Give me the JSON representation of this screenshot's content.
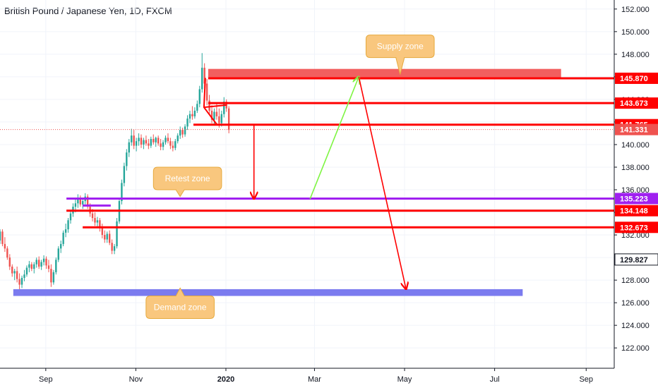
{
  "header": {
    "title": "British Pound / Japanese Yen, 1D, FXCM"
  },
  "chart_data": {
    "type": "candlestick",
    "symbol": "British Pound / Japanese Yen",
    "interval": "1D",
    "source": "FXCM",
    "ylim": [
      120.2,
      152.8
    ],
    "y_ticks": [
      "152.000",
      "150.000",
      "148.000",
      "146.000",
      "144.000",
      "142.000",
      "140.000",
      "138.000",
      "136.000",
      "134.000",
      "132.000",
      "130.000",
      "128.000",
      "126.000",
      "124.000",
      "122.000"
    ],
    "x_ticks": [
      {
        "label": "Sep",
        "date": "2019-09-01"
      },
      {
        "label": "Nov",
        "date": "2019-11-01"
      },
      {
        "label": "2020",
        "date": "2020-01-01"
      },
      {
        "label": "Mar",
        "date": "2020-03-01"
      },
      {
        "label": "May",
        "date": "2020-05-01"
      },
      {
        "label": "Jul",
        "date": "2020-07-01"
      },
      {
        "label": "Sep",
        "date": "2020-09-01"
      }
    ],
    "x_range": [
      "2019-08-01",
      "2020-09-20"
    ],
    "grid": true,
    "colors": {
      "up": "#26a69a",
      "down": "#ef5350",
      "level": "#ff0000",
      "purple": "#a020f0",
      "supply": "#f25f5f",
      "demand": "#7b7bef",
      "bubble": "#f9c77e",
      "bubble_border": "#e6a93c",
      "green_arrow": "#7ef542"
    },
    "current_price": {
      "label": "141.331",
      "value": 141.331,
      "color": "#ef5350"
    },
    "price_labels": [
      {
        "label": "145.870",
        "value": 145.87,
        "color": "#ff0000"
      },
      {
        "label": "143.673",
        "value": 143.673,
        "color": "#ff0000"
      },
      {
        "label": "141.765",
        "value": 141.765,
        "color": "#ff0000"
      },
      {
        "label": "135.223",
        "value": 135.223,
        "color": "#a020f0"
      },
      {
        "label": "134.148",
        "value": 134.148,
        "color": "#ff0000"
      },
      {
        "label": "132.673",
        "value": 132.673,
        "color": "#ff0000"
      },
      {
        "label": "129.827",
        "value": 129.827,
        "color": "#131722"
      }
    ],
    "horizontal_levels": [
      {
        "value": 145.87,
        "from": "2019-12-20",
        "color": "#ff0000"
      },
      {
        "value": 143.673,
        "from": "2019-12-20",
        "color": "#ff0000"
      },
      {
        "value": 141.765,
        "from": "2019-12-10",
        "color": "#ff0000"
      },
      {
        "value": 135.223,
        "from": "2019-09-15",
        "color": "#a020f0"
      },
      {
        "value": 134.148,
        "from": "2019-09-15",
        "color": "#ff0000"
      },
      {
        "value": 132.673,
        "from": "2019-09-26",
        "color": "#ff0000"
      }
    ],
    "short_line": {
      "value": 134.6,
      "from": "2019-09-26",
      "to": "2019-10-15",
      "color": "#a020f0"
    },
    "zones": [
      {
        "name": "Supply zone",
        "from": "2019-12-20",
        "to": "2020-08-15",
        "high": 146.7,
        "low": 145.95,
        "color": "#f25f5f"
      },
      {
        "name": "Demand zone",
        "from": "2019-08-10",
        "to": "2020-07-20",
        "high": 127.2,
        "low": 126.6,
        "color": "#7b7bef"
      }
    ],
    "annotations": [
      {
        "text": "Supply zone",
        "date": "2020-04-28",
        "value": 148.7,
        "tip_date": "2020-04-28",
        "tip_value": 146.2
      },
      {
        "text": "Retest zone",
        "date": "2019-12-06",
        "value": 137.0,
        "tip_date": "2019-12-01",
        "tip_value": 135.4
      },
      {
        "text": "Demand zone",
        "date": "2019-12-01",
        "value": 125.6,
        "tip_date": "2019-12-01",
        "tip_value": 127.3
      }
    ],
    "arrows": [
      {
        "from_date": "2020-01-20",
        "from_value": 141.7,
        "to_date": "2020-01-20",
        "to_value": 135.2,
        "color": "#ff0000"
      },
      {
        "from_date": "2020-02-27",
        "from_value": 135.2,
        "to_date": "2020-03-31",
        "to_value": 146.0,
        "color": "#7ef542"
      },
      {
        "from_date": "2020-03-31",
        "from_value": 146.0,
        "to_date": "2020-05-02",
        "to_value": 127.2,
        "color": "#ff0000"
      }
    ],
    "candles": [
      [
        131.5,
        132.5,
        131.2,
        132.3
      ],
      [
        132.3,
        132.5,
        131.0,
        131.2
      ],
      [
        131.2,
        131.8,
        130.5,
        130.8
      ],
      [
        130.8,
        131.0,
        129.8,
        130.0
      ],
      [
        130.0,
        130.3,
        128.9,
        129.2
      ],
      [
        129.2,
        129.4,
        128.3,
        128.6
      ],
      [
        128.6,
        129.0,
        128.0,
        128.8
      ],
      [
        128.8,
        129.2,
        127.8,
        128.1
      ],
      [
        128.1,
        128.6,
        127.2,
        127.6
      ],
      [
        127.6,
        128.4,
        127.3,
        128.2
      ],
      [
        128.2,
        128.9,
        127.9,
        128.5
      ],
      [
        128.5,
        129.3,
        128.3,
        129.1
      ],
      [
        129.1,
        129.7,
        128.7,
        129.4
      ],
      [
        129.4,
        129.6,
        128.8,
        129.0
      ],
      [
        129.0,
        129.6,
        128.6,
        129.4
      ],
      [
        129.4,
        130.0,
        129.1,
        129.8
      ],
      [
        129.8,
        130.1,
        129.0,
        129.2
      ],
      [
        129.2,
        129.8,
        128.9,
        129.6
      ],
      [
        129.6,
        130.2,
        129.3,
        129.9
      ],
      [
        129.9,
        130.1,
        129.0,
        129.3
      ],
      [
        129.3,
        129.8,
        128.7,
        129.0
      ],
      [
        129.0,
        129.4,
        127.4,
        127.8
      ],
      [
        127.8,
        128.9,
        127.6,
        128.7
      ],
      [
        128.7,
        130.0,
        128.5,
        129.8
      ],
      [
        129.8,
        131.0,
        129.6,
        130.8
      ],
      [
        130.8,
        131.5,
        130.4,
        131.2
      ],
      [
        131.2,
        132.4,
        131.0,
        132.2
      ],
      [
        132.2,
        133.0,
        131.8,
        132.5
      ],
      [
        132.5,
        133.5,
        132.2,
        133.3
      ],
      [
        133.3,
        134.2,
        133.0,
        133.9
      ],
      [
        133.9,
        134.8,
        133.6,
        134.5
      ],
      [
        134.5,
        135.2,
        134.0,
        134.8
      ],
      [
        134.8,
        135.6,
        134.4,
        135.3
      ],
      [
        135.3,
        135.5,
        134.5,
        134.7
      ],
      [
        134.7,
        135.3,
        134.3,
        135.0
      ],
      [
        135.0,
        135.7,
        134.7,
        135.4
      ],
      [
        135.4,
        135.6,
        134.3,
        134.5
      ],
      [
        134.5,
        134.8,
        133.6,
        133.9
      ],
      [
        133.9,
        134.3,
        133.2,
        133.5
      ],
      [
        133.5,
        134.0,
        132.8,
        133.1
      ],
      [
        133.1,
        133.6,
        132.6,
        133.3
      ],
      [
        133.3,
        133.5,
        132.3,
        132.6
      ],
      [
        132.6,
        133.0,
        131.7,
        132.0
      ],
      [
        132.0,
        132.4,
        131.3,
        131.6
      ],
      [
        131.6,
        132.3,
        131.3,
        132.1
      ],
      [
        132.1,
        132.4,
        131.1,
        131.3
      ],
      [
        131.3,
        131.6,
        130.3,
        130.6
      ],
      [
        130.6,
        131.2,
        130.3,
        131.0
      ],
      [
        131.0,
        133.5,
        130.8,
        133.2
      ],
      [
        133.2,
        135.2,
        133.0,
        135.0
      ],
      [
        135.0,
        136.9,
        134.7,
        136.6
      ],
      [
        136.6,
        138.4,
        136.3,
        138.1
      ],
      [
        138.1,
        139.6,
        137.7,
        139.3
      ],
      [
        139.3,
        140.5,
        138.9,
        140.2
      ],
      [
        140.2,
        141.4,
        139.9,
        140.8
      ],
      [
        140.8,
        141.3,
        139.6,
        139.9
      ],
      [
        139.9,
        140.6,
        139.4,
        140.3
      ],
      [
        140.3,
        141.0,
        139.9,
        140.6
      ],
      [
        140.6,
        140.9,
        139.7,
        140.0
      ],
      [
        140.0,
        140.6,
        139.6,
        140.4
      ],
      [
        140.4,
        140.8,
        139.9,
        140.1
      ],
      [
        140.1,
        140.5,
        139.6,
        139.9
      ],
      [
        139.9,
        140.7,
        139.7,
        140.5
      ],
      [
        140.5,
        140.9,
        140.0,
        140.2
      ],
      [
        140.2,
        140.7,
        139.8,
        140.6
      ],
      [
        140.6,
        140.8,
        139.9,
        140.1
      ],
      [
        140.1,
        140.5,
        139.5,
        139.8
      ],
      [
        139.8,
        140.4,
        139.5,
        140.2
      ],
      [
        140.2,
        140.8,
        140.0,
        140.6
      ],
      [
        140.6,
        141.0,
        140.1,
        140.3
      ],
      [
        140.3,
        140.6,
        139.6,
        139.9
      ],
      [
        139.9,
        140.3,
        139.4,
        139.7
      ],
      [
        139.7,
        140.5,
        139.5,
        140.3
      ],
      [
        140.3,
        141.0,
        140.1,
        140.8
      ],
      [
        140.8,
        141.6,
        140.5,
        141.3
      ],
      [
        141.3,
        141.5,
        140.6,
        140.9
      ],
      [
        140.9,
        141.8,
        140.7,
        141.6
      ],
      [
        141.6,
        142.6,
        141.3,
        142.3
      ],
      [
        142.3,
        143.0,
        141.9,
        142.7
      ],
      [
        142.7,
        143.4,
        142.2,
        142.5
      ],
      [
        142.5,
        143.3,
        142.3,
        143.0
      ],
      [
        143.0,
        143.9,
        142.8,
        143.6
      ],
      [
        143.6,
        145.2,
        143.3,
        144.9
      ],
      [
        144.9,
        148.1,
        144.6,
        146.8
      ],
      [
        146.8,
        147.2,
        145.0,
        145.4
      ],
      [
        145.4,
        145.8,
        143.5,
        143.9
      ],
      [
        143.9,
        144.4,
        142.6,
        143.0
      ],
      [
        143.0,
        143.5,
        141.9,
        142.2
      ],
      [
        142.2,
        143.2,
        141.8,
        142.9
      ],
      [
        142.9,
        143.6,
        142.2,
        142.5
      ],
      [
        142.5,
        143.2,
        141.5,
        141.9
      ],
      [
        141.9,
        143.0,
        141.6,
        142.7
      ],
      [
        142.7,
        144.2,
        142.4,
        143.8
      ],
      [
        143.8,
        144.0,
        142.9,
        143.2
      ],
      [
        143.2,
        143.4,
        141.0,
        141.3
      ]
    ]
  }
}
